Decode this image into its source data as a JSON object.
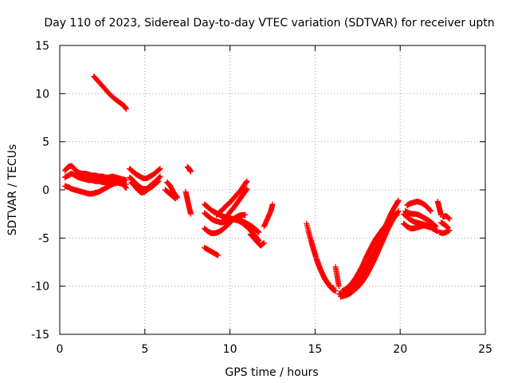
{
  "chart_data": {
    "type": "scatter",
    "title": "Day 110 of 2023, Sidereal Day-to-day VTEC variation (SDTVAR) for receiver uptn",
    "xlabel": "GPS time / hours",
    "ylabel": "SDTVAR / TECUs",
    "xlim": [
      0,
      25
    ],
    "ylim": [
      -15,
      15
    ],
    "xticks": [
      0,
      5,
      10,
      15,
      20,
      25
    ],
    "yticks": [
      -15,
      -10,
      -5,
      0,
      5,
      10,
      15
    ],
    "grid": true,
    "marker": "+",
    "color": "#ff0000",
    "series": [
      {
        "segments": [
          {
            "x": [
              2.0,
              2.3,
              2.6,
              2.9,
              3.2,
              3.5,
              3.8,
              3.9
            ],
            "y": [
              11.8,
              11.2,
              10.6,
              10.0,
              9.5,
              9.1,
              8.7,
              8.4
            ]
          },
          {
            "x": [
              0.3,
              0.5,
              0.7,
              0.9,
              1.1,
              1.3,
              1.5,
              1.7,
              1.9,
              2.1,
              2.3,
              2.5,
              2.7,
              2.9,
              3.1,
              3.3,
              3.5,
              3.7,
              3.9
            ],
            "y": [
              2.0,
              2.4,
              2.5,
              2.1,
              1.8,
              1.7,
              1.7,
              1.6,
              1.5,
              1.5,
              1.4,
              1.4,
              1.3,
              1.3,
              1.4,
              1.3,
              1.2,
              1.1,
              1.0
            ]
          },
          {
            "x": [
              0.3,
              0.5,
              0.7,
              0.9,
              1.1,
              1.3,
              1.5,
              1.7,
              1.9,
              2.1,
              2.3,
              2.5,
              2.7,
              2.9,
              3.1,
              3.3,
              3.5,
              3.7,
              3.9
            ],
            "y": [
              1.3,
              1.5,
              1.7,
              1.5,
              1.3,
              1.2,
              1.1,
              1.0,
              1.0,
              0.9,
              0.9,
              0.8,
              0.8,
              0.8,
              0.9,
              0.8,
              0.7,
              0.6,
              0.6
            ]
          },
          {
            "x": [
              0.3,
              0.5,
              0.7,
              0.9,
              1.1,
              1.3,
              1.5,
              1.7,
              1.9,
              2.1,
              2.3,
              2.5,
              2.7,
              2.9,
              3.1,
              3.3,
              3.5,
              3.7,
              3.9
            ],
            "y": [
              0.4,
              0.3,
              0.1,
              0.0,
              -0.1,
              -0.2,
              -0.3,
              -0.4,
              -0.4,
              -0.3,
              -0.2,
              0.0,
              0.2,
              0.4,
              0.6,
              0.7,
              0.8,
              0.6,
              0.2
            ]
          },
          {
            "x": [
              4.1,
              4.3,
              4.5,
              4.7,
              4.9,
              5.1,
              5.3,
              5.5,
              5.7,
              5.9
            ],
            "y": [
              2.2,
              1.9,
              1.6,
              1.4,
              1.2,
              1.2,
              1.4,
              1.6,
              1.9,
              2.2
            ]
          },
          {
            "x": [
              4.1,
              4.3,
              4.5,
              4.7,
              4.9,
              5.1,
              5.3,
              5.5,
              5.7,
              5.9
            ],
            "y": [
              1.3,
              1.0,
              0.6,
              0.3,
              0.1,
              0.1,
              0.4,
              0.7,
              1.0,
              1.4
            ]
          },
          {
            "x": [
              4.2,
              4.4,
              4.6,
              4.8,
              5.0,
              5.2,
              5.4,
              5.6,
              5.8
            ],
            "y": [
              0.8,
              0.4,
              0.0,
              -0.3,
              -0.2,
              0.1,
              0.3,
              0.6,
              0.9
            ]
          },
          {
            "x": [
              6.2,
              6.4,
              6.6,
              6.8
            ],
            "y": [
              0.0,
              -0.3,
              -0.6,
              -0.9
            ]
          },
          {
            "x": [
              6.3,
              6.5,
              6.7,
              6.9
            ],
            "y": [
              0.8,
              0.4,
              -0.3,
              -0.8
            ]
          },
          {
            "x": [
              7.5,
              7.6,
              7.7
            ],
            "y": [
              2.4,
              2.2,
              1.9
            ]
          },
          {
            "x": [
              7.4,
              7.5,
              7.6,
              7.7
            ],
            "y": [
              -0.2,
              -1.0,
              -1.8,
              -2.5
            ]
          },
          {
            "x": [
              8.5,
              8.7,
              8.9,
              9.1,
              9.3,
              9.5,
              9.7,
              9.9,
              10.1,
              10.3,
              10.5,
              10.7,
              10.9,
              11.1,
              11.3,
              11.5,
              11.7
            ],
            "y": [
              -1.5,
              -1.8,
              -2.1,
              -2.3,
              -2.5,
              -2.7,
              -2.8,
              -2.9,
              -3.0,
              -3.0,
              -3.0,
              -3.2,
              -3.4,
              -3.6,
              -3.8,
              -4.1,
              -4.4
            ]
          },
          {
            "x": [
              8.5,
              8.7,
              8.9,
              9.1,
              9.3,
              9.5,
              9.7,
              9.9,
              10.1,
              10.3,
              10.5,
              10.7,
              10.9,
              11.1,
              11.3,
              11.5,
              11.7
            ],
            "y": [
              -2.4,
              -2.7,
              -3.0,
              -3.2,
              -3.3,
              -3.4,
              -3.3,
              -3.2,
              -3.1,
              -3.1,
              -3.2,
              -3.4,
              -3.7,
              -4.0,
              -4.4,
              -4.8,
              -5.3
            ]
          },
          {
            "x": [
              8.5,
              8.7,
              8.9,
              9.1,
              9.3,
              9.5,
              9.7,
              9.9,
              10.1,
              10.3,
              10.5,
              10.7,
              10.9
            ],
            "y": [
              -4.0,
              -4.3,
              -4.5,
              -4.5,
              -4.4,
              -4.2,
              -3.9,
              -3.6,
              -3.2,
              -2.9,
              -2.7,
              -2.6,
              -2.6
            ]
          },
          {
            "x": [
              8.5,
              8.7,
              8.9,
              9.1,
              9.3
            ],
            "y": [
              -6.0,
              -6.2,
              -6.4,
              -6.6,
              -6.8
            ]
          },
          {
            "x": [
              9.2,
              9.4,
              9.6,
              9.8,
              10.0,
              10.2,
              10.4,
              10.6,
              10.8,
              11.0
            ],
            "y": [
              -2.6,
              -2.3,
              -2.0,
              -1.6,
              -1.3,
              -0.9,
              -0.5,
              -0.1,
              0.4,
              0.9
            ]
          },
          {
            "x": [
              9.6,
              9.8,
              10.0,
              10.2,
              10.4,
              10.6,
              10.8,
              11.0
            ],
            "y": [
              -3.2,
              -2.8,
              -2.3,
              -1.9,
              -1.4,
              -0.9,
              -0.4,
              0.1
            ]
          },
          {
            "x": [
              11.2,
              11.4,
              11.6,
              11.8,
              12.0
            ],
            "y": [
              -4.6,
              -5.0,
              -5.4,
              -5.8,
              -5.5
            ]
          },
          {
            "x": [
              12.0,
              12.2,
              12.4,
              12.5
            ],
            "y": [
              -3.8,
              -3.0,
              -2.2,
              -1.5
            ]
          },
          {
            "x": [
              14.5,
              14.7,
              14.9,
              15.1,
              15.3,
              15.5,
              15.7,
              15.9,
              16.1
            ],
            "y": [
              -3.5,
              -4.8,
              -6.0,
              -7.2,
              -8.2,
              -9.0,
              -9.6,
              -10.1,
              -10.2
            ]
          },
          {
            "x": [
              14.6,
              14.8,
              15.0,
              15.2,
              15.4,
              15.6,
              15.8,
              16.0,
              16.2
            ],
            "y": [
              -4.3,
              -5.6,
              -6.8,
              -7.8,
              -8.6,
              -9.3,
              -9.8,
              -10.3,
              -10.5
            ]
          },
          {
            "x": [
              16.2,
              16.3,
              16.4
            ],
            "y": [
              -8.0,
              -9.0,
              -10.0
            ]
          },
          {
            "x": [
              16.4,
              16.6,
              16.8,
              17.0,
              17.2,
              17.4,
              17.6,
              17.8,
              18.0,
              18.2,
              18.4,
              18.6,
              18.8,
              19.0,
              19.2,
              19.4,
              19.6,
              19.8,
              19.9
            ],
            "y": [
              -10.8,
              -10.9,
              -10.7,
              -10.4,
              -10.1,
              -9.7,
              -9.2,
              -8.7,
              -8.1,
              -7.4,
              -6.7,
              -5.9,
              -5.1,
              -4.3,
              -3.5,
              -2.7,
              -2.0,
              -1.4,
              -1.1
            ]
          },
          {
            "x": [
              16.5,
              16.7,
              16.9,
              17.1,
              17.3,
              17.5,
              17.7,
              17.9,
              18.1,
              18.3,
              18.5,
              18.7,
              18.9,
              19.1,
              19.3,
              19.5,
              19.7,
              19.9
            ],
            "y": [
              -11.1,
              -11.0,
              -10.9,
              -10.7,
              -10.4,
              -10.1,
              -9.7,
              -9.2,
              -8.6,
              -7.9,
              -7.2,
              -6.4,
              -5.6,
              -4.8,
              -4.0,
              -3.3,
              -2.7,
              -2.2
            ]
          },
          {
            "x": [
              16.6,
              16.8,
              17.0,
              17.2,
              17.4,
              17.6,
              17.8,
              18.0,
              18.2,
              18.4,
              18.6,
              18.8,
              19.0,
              19.2,
              19.4,
              19.6,
              19.8
            ],
            "y": [
              -10.5,
              -10.3,
              -10.0,
              -9.6,
              -9.1,
              -8.5,
              -7.8,
              -7.0,
              -6.3,
              -5.6,
              -5.0,
              -4.5,
              -4.0,
              -3.6,
              -3.2,
              -2.9,
              -2.6
            ]
          },
          {
            "x": [
              20.2,
              20.4,
              20.6,
              20.8,
              21.0,
              21.2,
              21.4,
              21.6,
              21.8,
              22.0
            ],
            "y": [
              -2.5,
              -2.8,
              -3.1,
              -3.3,
              -3.4,
              -3.5,
              -3.6,
              -3.7,
              -3.8,
              -3.9
            ]
          },
          {
            "x": [
              20.2,
              20.4,
              20.6,
              20.8,
              21.0,
              21.2,
              21.4,
              21.6,
              21.8,
              22.0,
              22.2
            ],
            "y": [
              -3.5,
              -3.8,
              -4.0,
              -4.0,
              -3.9,
              -3.8,
              -3.7,
              -3.8,
              -3.9,
              -4.1,
              -4.3
            ]
          },
          {
            "x": [
              20.4,
              20.6,
              20.8,
              21.0,
              21.2,
              21.4,
              21.6,
              21.8
            ],
            "y": [
              -1.6,
              -1.4,
              -1.3,
              -1.2,
              -1.3,
              -1.5,
              -1.8,
              -2.2
            ]
          },
          {
            "x": [
              20.3,
              20.5,
              20.7,
              20.9,
              21.1,
              21.3,
              21.5,
              21.7,
              21.9,
              22.1
            ],
            "y": [
              -2.2,
              -2.4,
              -2.5,
              -2.5,
              -2.6,
              -2.8,
              -3.0,
              -3.2,
              -3.5,
              -3.8
            ]
          },
          {
            "x": [
              22.2,
              22.3,
              22.4
            ],
            "y": [
              -1.2,
              -1.9,
              -2.6
            ]
          },
          {
            "x": [
              22.4,
              22.6,
              22.8
            ],
            "y": [
              -3.4,
              -3.6,
              -3.9
            ]
          },
          {
            "x": [
              22.3,
              22.5,
              22.7,
              22.9
            ],
            "y": [
              -4.4,
              -4.5,
              -4.4,
              -4.2
            ]
          },
          {
            "x": [
              22.5,
              22.7,
              22.9
            ],
            "y": [
              -2.8,
              -2.7,
              -3.0
            ]
          }
        ]
      }
    ]
  }
}
